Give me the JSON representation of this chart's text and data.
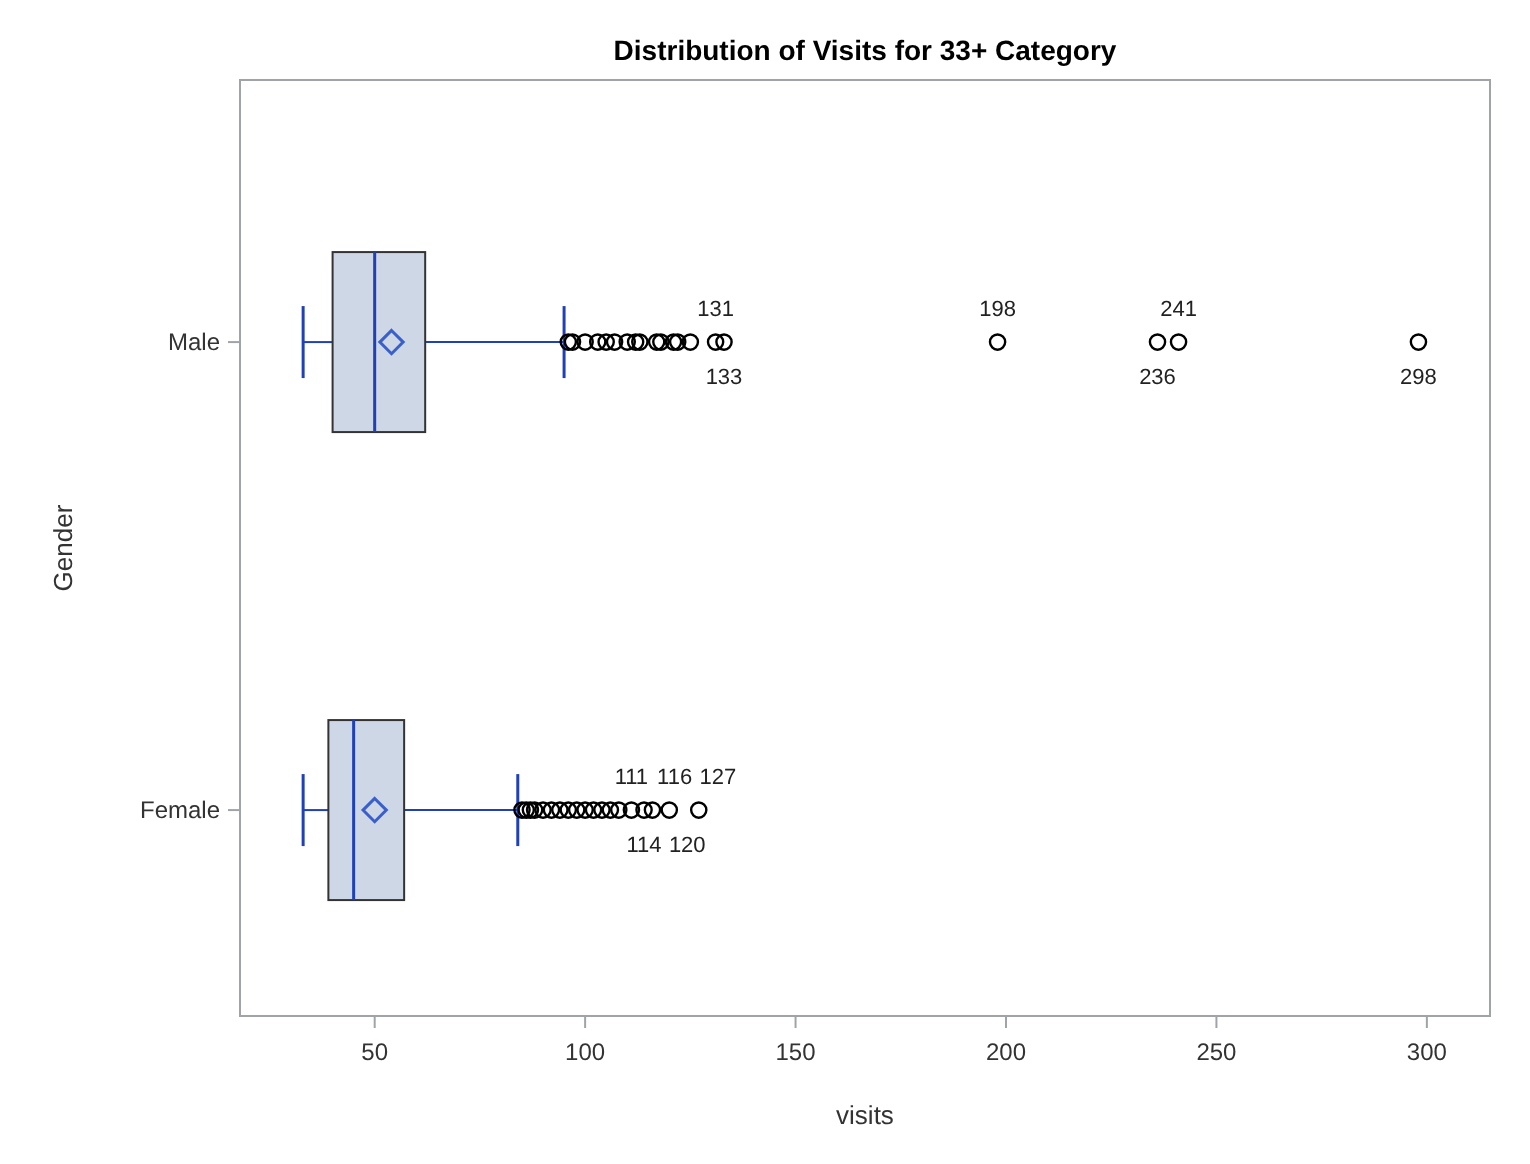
{
  "chart_data": {
    "type": "box",
    "orientation": "horizontal",
    "title": "Distribution of Visits for 33+ Category",
    "xlabel": "visits",
    "ylabel": "Gender",
    "categories": [
      "Male",
      "Female"
    ],
    "boxes": [
      {
        "low": 33,
        "q1": 40,
        "median": 50,
        "q3": 62,
        "high": 95,
        "mean": 54,
        "outliers": [
          96,
          97,
          100,
          103,
          105,
          107,
          110,
          112,
          113,
          117,
          118,
          121,
          122,
          125,
          131,
          133,
          198,
          236,
          241,
          298
        ]
      },
      {
        "low": 33,
        "q1": 39,
        "median": 45,
        "q3": 57,
        "high": 84,
        "mean": 50,
        "outliers": [
          85,
          86,
          87,
          88,
          90,
          92,
          94,
          96,
          98,
          100,
          102,
          104,
          106,
          108,
          111,
          114,
          116,
          120,
          127
        ]
      }
    ],
    "color": "#cdd7e6",
    "marker": "diamond",
    "xlim": [
      18,
      315
    ],
    "xticks": [
      50,
      100,
      150,
      200,
      250,
      300
    ],
    "grid": false,
    "annotations": [
      "131",
      "133",
      "198",
      "236",
      "241",
      "298",
      "111",
      "114",
      "116",
      "120",
      "127"
    ]
  }
}
